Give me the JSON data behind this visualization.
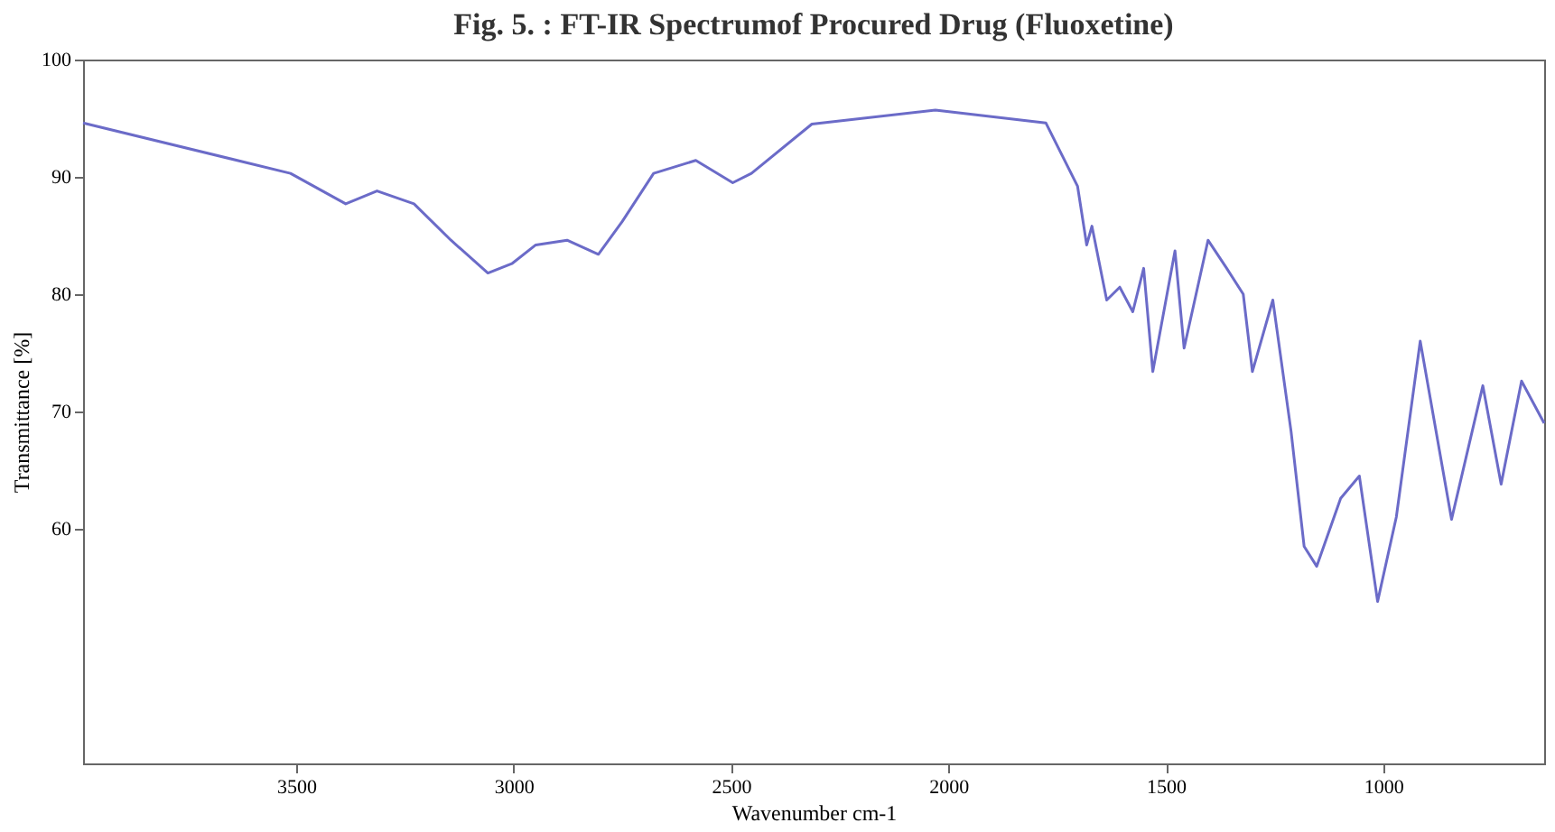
{
  "chart_data": {
    "type": "line",
    "title": "Fig. 5. : FT-IR Spectrumof Procured Drug (Fluoxetine)",
    "xlabel": "Wavenumber cm-1",
    "ylabel": "Transmittance [%]",
    "x": [
      3990,
      3513,
      3386,
      3314,
      3229,
      3144,
      3059,
      3004,
      2949,
      2877,
      2805,
      2750,
      2678,
      2581,
      2496,
      2453,
      2314,
      2030,
      1776,
      1703,
      1682,
      1670,
      1636,
      1606,
      1576,
      1551,
      1530,
      1479,
      1458,
      1403,
      1360,
      1322,
      1301,
      1254,
      1212,
      1182,
      1153,
      1098,
      1055,
      1013,
      970,
      915,
      843,
      771,
      729,
      682,
      630
    ],
    "series": [
      {
        "color": "#6b6bc8",
        "values": [
          94.6,
          90.3,
          87.7,
          88.8,
          87.7,
          84.6,
          81.8,
          82.6,
          84.2,
          84.6,
          83.4,
          86.2,
          90.3,
          91.4,
          89.5,
          90.3,
          94.5,
          95.7,
          94.6,
          89.2,
          84.2,
          85.8,
          79.5,
          80.6,
          78.5,
          82.2,
          73.4,
          83.7,
          75.4,
          84.6,
          82.2,
          80.0,
          73.4,
          79.5,
          68.3,
          58.5,
          56.8,
          62.6,
          64.5,
          53.8,
          61.0,
          76.0,
          60.8,
          72.2,
          63.8,
          72.6,
          69.0
        ]
      }
    ],
    "xlim": [
      3990,
      630
    ],
    "xticks": [
      3500,
      3000,
      2500,
      2000,
      1500,
      1000
    ],
    "ylim": [
      40,
      100
    ],
    "yticks": [
      60,
      70,
      80,
      90,
      100
    ],
    "grid": false,
    "marker": "none",
    "line_style": "solid"
  }
}
